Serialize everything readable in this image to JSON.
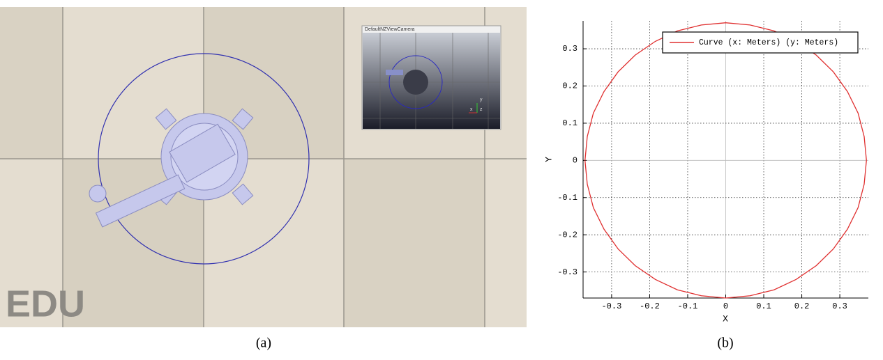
{
  "panel_a": {
    "overlay_text": "EDU",
    "inset_title": "DefaultNZViewCamera",
    "inset_axes": [
      "x",
      "y",
      "z"
    ],
    "caption": "(a)"
  },
  "chart_data": {
    "type": "line",
    "caption": "(b)",
    "xlabel": "X",
    "ylabel": "Y",
    "xlim": [
      -0.375,
      0.375
    ],
    "ylim": [
      -0.37,
      0.375
    ],
    "xticks": [
      -0.3,
      -0.2,
      -0.1,
      0,
      0.1,
      0.2,
      0.3
    ],
    "yticks": [
      -0.3,
      -0.2,
      -0.1,
      0,
      0.1,
      0.2,
      0.3
    ],
    "grid": true,
    "legend": "upper right",
    "series": [
      {
        "name": "Curve (x: Meters) (y: Meters)",
        "color": "#e03030",
        "x": [
          0.37,
          0.364,
          0.348,
          0.32,
          0.283,
          0.238,
          0.185,
          0.127,
          0.064,
          0,
          -0.064,
          -0.127,
          -0.185,
          -0.238,
          -0.283,
          -0.32,
          -0.348,
          -0.364,
          -0.37,
          -0.364,
          -0.348,
          -0.32,
          -0.283,
          -0.238,
          -0.185,
          -0.127,
          -0.064,
          0,
          0.064,
          0.127,
          0.185,
          0.238,
          0.283,
          0.32,
          0.348,
          0.364,
          0.37
        ],
        "values": [
          0,
          0.064,
          0.127,
          0.185,
          0.238,
          0.283,
          0.32,
          0.348,
          0.364,
          0.37,
          0.364,
          0.348,
          0.32,
          0.283,
          0.238,
          0.185,
          0.127,
          0.064,
          0,
          -0.064,
          -0.127,
          -0.185,
          -0.238,
          -0.283,
          -0.32,
          -0.348,
          -0.364,
          -0.37,
          -0.364,
          -0.348,
          -0.32,
          -0.283,
          -0.238,
          -0.185,
          -0.127,
          -0.064,
          0
        ]
      }
    ]
  }
}
